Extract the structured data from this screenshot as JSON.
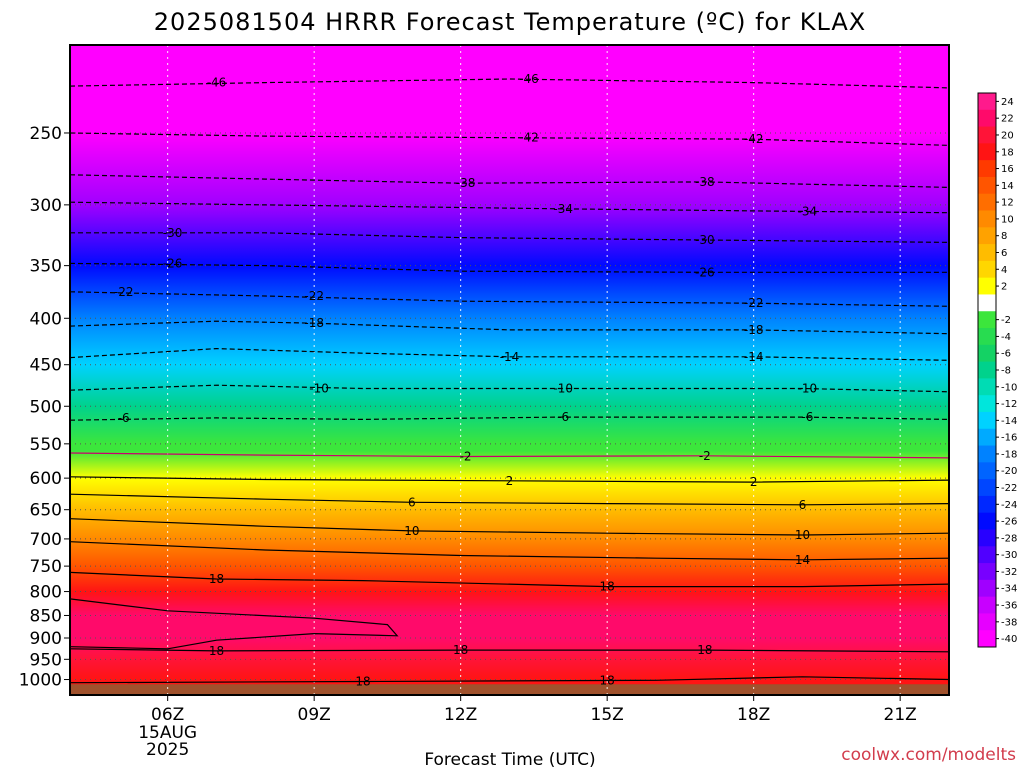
{
  "chart_data": {
    "type": "heatmap",
    "title": "2025081504 HRRR Forecast Temperature (ºC) for KLAX",
    "xlabel": "Forecast Time (UTC)",
    "ylabel": "",
    "credit": "coolwx.com/modelts",
    "x_hours_range": [
      4,
      22
    ],
    "y_pressure_range_hPa": [
      1040,
      200
    ],
    "x_ticks": [
      {
        "hour": 6,
        "label": "06Z",
        "sub": [
          "15AUG",
          "2025"
        ]
      },
      {
        "hour": 9,
        "label": "09Z"
      },
      {
        "hour": 12,
        "label": "12Z"
      },
      {
        "hour": 15,
        "label": "15Z"
      },
      {
        "hour": 18,
        "label": "18Z"
      },
      {
        "hour": 21,
        "label": "21Z"
      }
    ],
    "y_ticks": [
      250,
      300,
      350,
      400,
      450,
      500,
      550,
      600,
      650,
      700,
      750,
      800,
      850,
      900,
      950,
      1000
    ],
    "grid": true,
    "colorbar": {
      "levels": [
        24,
        22,
        20,
        18,
        16,
        14,
        12,
        10,
        8,
        6,
        4,
        2,
        0,
        -2,
        -4,
        -6,
        -8,
        -10,
        -12,
        -14,
        -16,
        -18,
        -20,
        -22,
        -24,
        -26,
        -28,
        -30,
        -32,
        -34,
        -36,
        -38,
        -40
      ],
      "labels": [
        "24",
        "22",
        "20",
        "18",
        "16",
        "14",
        "12",
        "10",
        "8",
        "6",
        "4",
        "2",
        "-2",
        "-4",
        "-6",
        "-8",
        "-10",
        "-12",
        "-14",
        "-16",
        "-18",
        "-20",
        "-22",
        "-24",
        "-26",
        "-28",
        "-30",
        "-32",
        "-34",
        "-36",
        "-38",
        "-40"
      ],
      "colors": [
        "#ff1a8c",
        "#ff0a6a",
        "#ff1438",
        "#ff1414",
        "#ff3a00",
        "#ff5500",
        "#ff6e00",
        "#ff8a00",
        "#ffa200",
        "#ffbc00",
        "#ffd600",
        "#ffff00",
        "#ffffff",
        "#3ce63c",
        "#28dc50",
        "#14d264",
        "#00d28c",
        "#00dcb4",
        "#00e6dc",
        "#00d2ff",
        "#00aaff",
        "#0082ff",
        "#0064ff",
        "#0046ff",
        "#0028ff",
        "#000aff",
        "#2800ff",
        "#5000ff",
        "#7800ff",
        "#a000ff",
        "#c800ff",
        "#e600ff",
        "#ff00ff"
      ]
    },
    "temperature_profile": [
      {
        "p": 1030,
        "t": null,
        "surface": true
      },
      {
        "p": 1000,
        "t": 18
      },
      {
        "p": 950,
        "t": 20
      },
      {
        "p": 900,
        "t": 22
      },
      {
        "p": 850,
        "t": 22
      },
      {
        "p": 800,
        "t": 19
      },
      {
        "p": 750,
        "t": 15
      },
      {
        "p": 700,
        "t": 10
      },
      {
        "p": 650,
        "t": 6
      },
      {
        "p": 600,
        "t": 2
      },
      {
        "p": 560,
        "t": -0.5
      },
      {
        "p": 550,
        "t": -2
      },
      {
        "p": 500,
        "t": -8
      },
      {
        "p": 450,
        "t": -13
      },
      {
        "p": 400,
        "t": -18
      },
      {
        "p": 350,
        "t": -26
      },
      {
        "p": 300,
        "t": -34
      },
      {
        "p": 250,
        "t": -42
      },
      {
        "p": 200,
        "t": -48
      }
    ],
    "contours": [
      {
        "value": "-46",
        "points": [
          [
            4,
            222
          ],
          [
            8,
            220
          ],
          [
            13,
            218
          ],
          [
            18,
            220
          ],
          [
            22,
            223
          ]
        ],
        "labels": [
          [
            7,
            220
          ],
          [
            13.4,
            218
          ]
        ]
      },
      {
        "value": "-42",
        "points": [
          [
            4,
            250
          ],
          [
            8,
            252
          ],
          [
            13,
            253
          ],
          [
            18,
            254
          ],
          [
            22,
            258
          ]
        ],
        "labels": [
          [
            13.4,
            253
          ],
          [
            18,
            254
          ]
        ]
      },
      {
        "value": "-38",
        "points": [
          [
            4,
            278
          ],
          [
            8,
            281
          ],
          [
            12,
            284
          ],
          [
            17,
            283
          ],
          [
            22,
            287
          ]
        ],
        "labels": [
          [
            12.1,
            284
          ],
          [
            17,
            283
          ]
        ]
      },
      {
        "value": "-34",
        "points": [
          [
            4,
            298
          ],
          [
            8,
            300
          ],
          [
            14,
            303
          ],
          [
            19,
            305
          ],
          [
            22,
            306
          ]
        ],
        "labels": [
          [
            14.1,
            303
          ],
          [
            19.1,
            305
          ]
        ]
      },
      {
        "value": "-30",
        "points": [
          [
            4,
            322
          ],
          [
            8,
            322
          ],
          [
            12,
            326
          ],
          [
            17,
            328
          ],
          [
            22,
            330
          ]
        ],
        "labels": [
          [
            6.1,
            322
          ],
          [
            17,
            328
          ]
        ]
      },
      {
        "value": "-26",
        "points": [
          [
            4,
            348
          ],
          [
            8,
            350
          ],
          [
            12,
            355
          ],
          [
            17,
            356
          ],
          [
            22,
            356
          ]
        ],
        "labels": [
          [
            6.1,
            348
          ],
          [
            17,
            356
          ]
        ]
      },
      {
        "value": "-22",
        "points": [
          [
            4,
            374
          ],
          [
            8,
            378
          ],
          [
            12,
            383
          ],
          [
            18,
            385
          ],
          [
            22,
            388
          ]
        ],
        "labels": [
          [
            5.1,
            374
          ],
          [
            9,
            378
          ],
          [
            18,
            385
          ]
        ]
      },
      {
        "value": "-18",
        "points": [
          [
            4,
            408
          ],
          [
            7,
            403
          ],
          [
            9,
            405
          ],
          [
            13,
            412
          ],
          [
            18,
            412
          ],
          [
            22,
            416
          ]
        ],
        "labels": [
          [
            9,
            405
          ],
          [
            18,
            412
          ]
        ]
      },
      {
        "value": "-14",
        "points": [
          [
            4,
            442
          ],
          [
            7,
            432
          ],
          [
            10,
            437
          ],
          [
            13,
            441
          ],
          [
            18,
            441
          ],
          [
            22,
            445
          ]
        ],
        "labels": [
          [
            13,
            441
          ],
          [
            18,
            441
          ]
        ]
      },
      {
        "value": "-10",
        "points": [
          [
            4,
            480
          ],
          [
            7,
            474
          ],
          [
            10,
            478
          ],
          [
            14,
            478
          ],
          [
            19,
            478
          ],
          [
            22,
            482
          ]
        ],
        "labels": [
          [
            9.1,
            478
          ],
          [
            14.1,
            478
          ],
          [
            19.1,
            478
          ]
        ]
      },
      {
        "value": "-6",
        "points": [
          [
            4,
            518
          ],
          [
            7,
            515
          ],
          [
            10,
            517
          ],
          [
            14,
            514
          ],
          [
            19,
            514
          ],
          [
            22,
            517
          ]
        ],
        "labels": [
          [
            5.1,
            515
          ],
          [
            14.1,
            514
          ],
          [
            19.1,
            514
          ]
        ]
      },
      {
        "value": "-2",
        "points": [
          [
            4,
            563
          ],
          [
            8,
            566
          ],
          [
            12,
            568
          ],
          [
            17,
            567
          ],
          [
            22,
            570
          ]
        ],
        "labels": [
          [
            12.1,
            568
          ],
          [
            17,
            567
          ]
        ]
      },
      {
        "value": "2",
        "points": [
          [
            4,
            598
          ],
          [
            8,
            602
          ],
          [
            13,
            604
          ],
          [
            18,
            606
          ],
          [
            22,
            603
          ]
        ],
        "labels": [
          [
            13,
            604
          ],
          [
            18,
            606
          ]
        ]
      },
      {
        "value": "6",
        "points": [
          [
            4,
            625
          ],
          [
            8,
            633
          ],
          [
            11,
            638
          ],
          [
            15,
            640
          ],
          [
            19,
            642
          ],
          [
            22,
            640
          ]
        ],
        "labels": [
          [
            11,
            638
          ],
          [
            19,
            642
          ]
        ]
      },
      {
        "value": "10",
        "points": [
          [
            4,
            665
          ],
          [
            8,
            678
          ],
          [
            11,
            686
          ],
          [
            15,
            690
          ],
          [
            19,
            693
          ],
          [
            22,
            690
          ]
        ],
        "labels": [
          [
            11,
            686
          ],
          [
            19,
            693
          ]
        ]
      },
      {
        "value": "14",
        "points": [
          [
            4,
            705
          ],
          [
            8,
            720
          ],
          [
            12,
            730
          ],
          [
            16,
            735
          ],
          [
            19,
            738
          ],
          [
            22,
            735
          ]
        ],
        "labels": [
          [
            19,
            738
          ]
        ]
      },
      {
        "value": "18",
        "points": [
          [
            4,
            762
          ],
          [
            7,
            775
          ],
          [
            10,
            778
          ],
          [
            15,
            790
          ],
          [
            19,
            790
          ],
          [
            22,
            785
          ]
        ],
        "labels": [
          [
            7,
            775
          ],
          [
            15,
            790
          ]
        ]
      },
      {
        "value": "18",
        "points": [
          [
            4,
            815
          ],
          [
            6,
            840
          ],
          [
            9,
            856
          ],
          [
            10.5,
            870
          ],
          [
            10.7,
            895
          ],
          [
            9,
            890
          ],
          [
            7,
            905
          ],
          [
            6,
            925
          ],
          [
            4,
            920
          ]
        ],
        "labels": []
      },
      {
        "value": "18",
        "points": [
          [
            4,
            925
          ],
          [
            7,
            930
          ],
          [
            12,
            928
          ],
          [
            17,
            928
          ],
          [
            22,
            932
          ]
        ],
        "labels": [
          [
            7,
            930
          ],
          [
            12,
            928
          ],
          [
            17,
            928
          ]
        ]
      },
      {
        "value": "18",
        "points": [
          [
            4,
            1008
          ],
          [
            10,
            1005
          ],
          [
            16,
            1002
          ],
          [
            19,
            993
          ],
          [
            22,
            1000
          ]
        ],
        "labels": [
          [
            10,
            1005
          ],
          [
            15,
            1002
          ]
        ]
      }
    ]
  }
}
